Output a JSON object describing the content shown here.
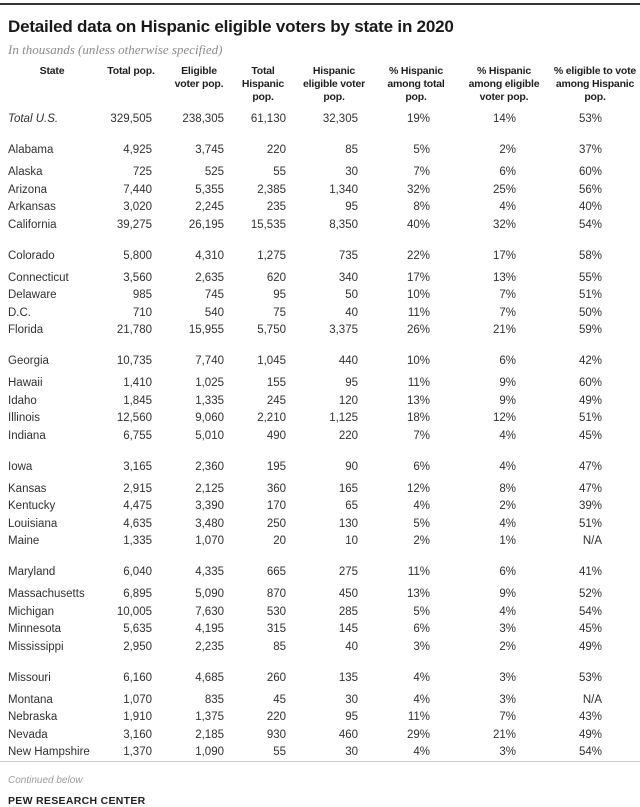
{
  "title": "Detailed data on Hispanic eligible voters by state in 2020",
  "units_note": "In thousands (unless otherwise specified)",
  "footer": {
    "continued": "Continued below",
    "source": "PEW RESEARCH CENTER"
  },
  "colors": {
    "top_rule": "#373737",
    "bottom_rule": "#c9c9c9",
    "subtitle_gray": "#8a8a8a",
    "text": "#303030"
  },
  "chart_data": {
    "type": "table",
    "title": "Detailed data on Hispanic eligible voters by state in 2020",
    "units": "In thousands (unless otherwise specified)",
    "columns": [
      "State",
      "Total pop.",
      "Eligible voter pop.",
      "Total Hispanic pop.",
      "Hispanic eligible voter pop.",
      "% Hispanic among total pop.",
      "% Hispanic among eligible voter pop.",
      "% eligible to vote among Hispanic pop."
    ],
    "columns_wrapped": [
      "State",
      "Total pop.",
      "Eligible\nvoter pop.",
      "Total\nHispanic\npop.",
      "Hispanic\neligible voter\npop.",
      "% Hispanic\namong total\npop.",
      "% Hispanic\namong eligible\nvoter pop.",
      "% eligible to vote\namong Hispanic\npop."
    ],
    "rows": [
      {
        "state": "Total U.S.",
        "italic": true,
        "group": 0,
        "values": [
          "329,505",
          "238,305",
          "61,130",
          "32,305",
          "19%",
          "14%",
          "53%"
        ]
      },
      {
        "state": "Alabama",
        "group": 1,
        "values": [
          "4,925",
          "3,745",
          "220",
          "85",
          "5%",
          "2%",
          "37%"
        ]
      },
      {
        "state": "Alaska",
        "group": 1,
        "values": [
          "725",
          "525",
          "55",
          "30",
          "7%",
          "6%",
          "60%"
        ]
      },
      {
        "state": "Arizona",
        "group": 1,
        "values": [
          "7,440",
          "5,355",
          "2,385",
          "1,340",
          "32%",
          "25%",
          "56%"
        ]
      },
      {
        "state": "Arkansas",
        "group": 1,
        "values": [
          "3,020",
          "2,245",
          "235",
          "95",
          "8%",
          "4%",
          "40%"
        ]
      },
      {
        "state": "California",
        "group": 1,
        "values": [
          "39,275",
          "26,195",
          "15,535",
          "8,350",
          "40%",
          "32%",
          "54%"
        ]
      },
      {
        "state": "Colorado",
        "group": 2,
        "values": [
          "5,800",
          "4,310",
          "1,275",
          "735",
          "22%",
          "17%",
          "58%"
        ]
      },
      {
        "state": "Connecticut",
        "group": 2,
        "values": [
          "3,560",
          "2,635",
          "620",
          "340",
          "17%",
          "13%",
          "55%"
        ]
      },
      {
        "state": "Delaware",
        "group": 2,
        "values": [
          "985",
          "745",
          "95",
          "50",
          "10%",
          "7%",
          "51%"
        ]
      },
      {
        "state": "D.C.",
        "group": 2,
        "values": [
          "710",
          "540",
          "75",
          "40",
          "11%",
          "7%",
          "50%"
        ]
      },
      {
        "state": "Florida",
        "group": 2,
        "values": [
          "21,780",
          "15,955",
          "5,750",
          "3,375",
          "26%",
          "21%",
          "59%"
        ]
      },
      {
        "state": "Georgia",
        "group": 3,
        "values": [
          "10,735",
          "7,740",
          "1,045",
          "440",
          "10%",
          "6%",
          "42%"
        ]
      },
      {
        "state": "Hawaii",
        "group": 3,
        "values": [
          "1,410",
          "1,025",
          "155",
          "95",
          "11%",
          "9%",
          "60%"
        ]
      },
      {
        "state": "Idaho",
        "group": 3,
        "values": [
          "1,845",
          "1,335",
          "245",
          "120",
          "13%",
          "9%",
          "49%"
        ]
      },
      {
        "state": "Illinois",
        "group": 3,
        "values": [
          "12,560",
          "9,060",
          "2,210",
          "1,125",
          "18%",
          "12%",
          "51%"
        ]
      },
      {
        "state": "Indiana",
        "group": 3,
        "values": [
          "6,755",
          "5,010",
          "490",
          "220",
          "7%",
          "4%",
          "45%"
        ]
      },
      {
        "state": "Iowa",
        "group": 4,
        "values": [
          "3,165",
          "2,360",
          "195",
          "90",
          "6%",
          "4%",
          "47%"
        ]
      },
      {
        "state": "Kansas",
        "group": 4,
        "values": [
          "2,915",
          "2,125",
          "360",
          "165",
          "12%",
          "8%",
          "47%"
        ]
      },
      {
        "state": "Kentucky",
        "group": 4,
        "values": [
          "4,475",
          "3,390",
          "170",
          "65",
          "4%",
          "2%",
          "39%"
        ]
      },
      {
        "state": "Louisiana",
        "group": 4,
        "values": [
          "4,635",
          "3,480",
          "250",
          "130",
          "5%",
          "4%",
          "51%"
        ]
      },
      {
        "state": "Maine",
        "group": 4,
        "values": [
          "1,335",
          "1,070",
          "20",
          "10",
          "2%",
          "1%",
          "N/A"
        ]
      },
      {
        "state": "Maryland",
        "group": 5,
        "values": [
          "6,040",
          "4,335",
          "665",
          "275",
          "11%",
          "6%",
          "41%"
        ]
      },
      {
        "state": "Massachusetts",
        "group": 5,
        "values": [
          "6,895",
          "5,090",
          "870",
          "450",
          "13%",
          "9%",
          "52%"
        ]
      },
      {
        "state": "Michigan",
        "group": 5,
        "values": [
          "10,005",
          "7,630",
          "530",
          "285",
          "5%",
          "4%",
          "54%"
        ]
      },
      {
        "state": "Minnesota",
        "group": 5,
        "values": [
          "5,635",
          "4,195",
          "315",
          "145",
          "6%",
          "3%",
          "45%"
        ]
      },
      {
        "state": "Mississippi",
        "group": 5,
        "values": [
          "2,950",
          "2,235",
          "85",
          "40",
          "3%",
          "2%",
          "49%"
        ]
      },
      {
        "state": "Missouri",
        "group": 6,
        "values": [
          "6,160",
          "4,685",
          "260",
          "135",
          "4%",
          "3%",
          "53%"
        ]
      },
      {
        "state": "Montana",
        "group": 6,
        "values": [
          "1,070",
          "835",
          "45",
          "30",
          "4%",
          "3%",
          "N/A"
        ]
      },
      {
        "state": "Nebraska",
        "group": 6,
        "values": [
          "1,910",
          "1,375",
          "220",
          "95",
          "11%",
          "7%",
          "43%"
        ]
      },
      {
        "state": "Nevada",
        "group": 6,
        "values": [
          "3,160",
          "2,185",
          "930",
          "460",
          "29%",
          "21%",
          "49%"
        ]
      },
      {
        "state": "New Hampshire",
        "group": 6,
        "values": [
          "1,370",
          "1,090",
          "55",
          "30",
          "4%",
          "3%",
          "54%"
        ]
      }
    ]
  }
}
